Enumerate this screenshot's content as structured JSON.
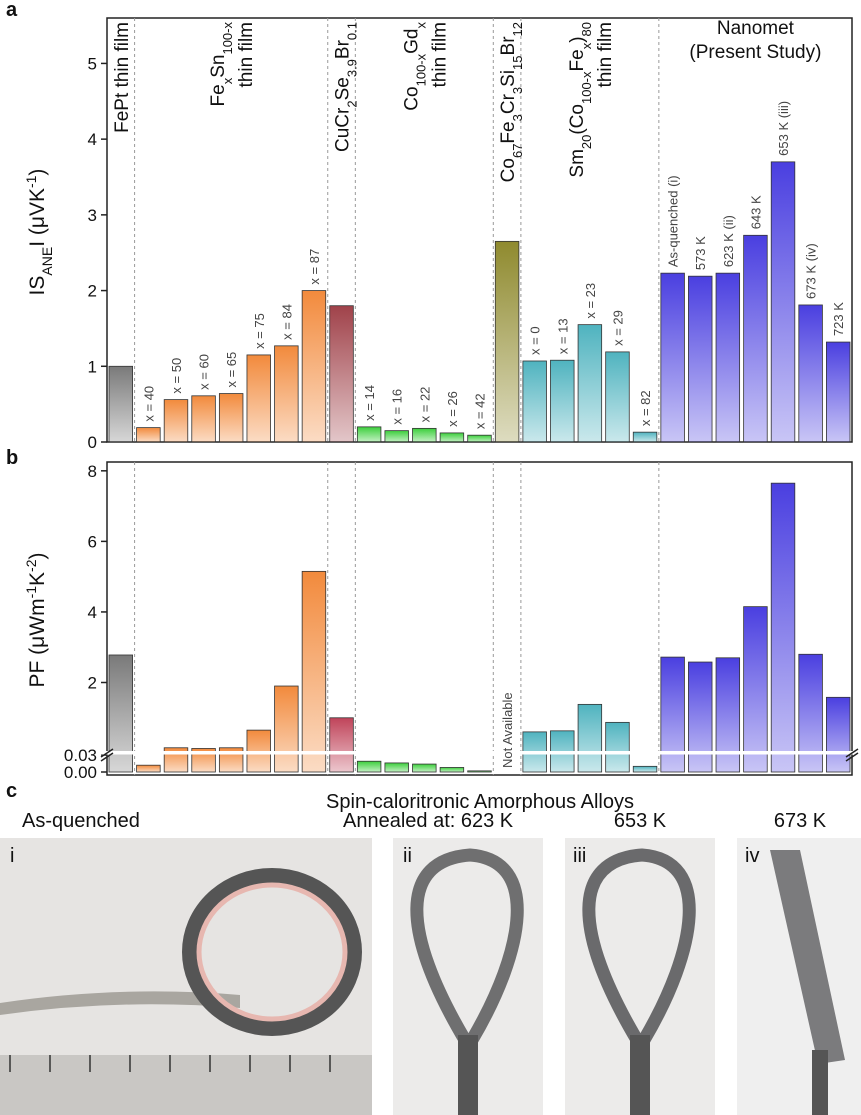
{
  "chart_data": [
    {
      "type": "bar",
      "panel": "a",
      "ylabel": [
        "IS",
        "ANE",
        "I (μVK",
        "-1",
        ")"
      ],
      "ylim": [
        0,
        5.6
      ],
      "yticks": [
        0,
        1,
        2,
        3,
        4,
        5
      ],
      "groups": [
        {
          "name": [
            [
              "FePt thin film"
            ]
          ],
          "color": "#7a7a7a",
          "labels": [
            null
          ],
          "values": [
            1.0
          ]
        },
        {
          "name": [
            [
              "Fe",
              "x",
              "Sn",
              "100-x"
            ],
            [
              "thin film"
            ]
          ],
          "color": "#f28a3c",
          "labels": [
            "x = 40",
            "x = 50",
            "x = 60",
            "x = 65",
            "x = 75",
            "x = 84",
            "x = 87"
          ],
          "values": [
            0.19,
            0.56,
            0.61,
            0.64,
            1.15,
            1.27,
            2.0
          ]
        },
        {
          "name": [
            [
              "CuCr",
              "2",
              "Se",
              "3.9",
              "Br",
              "0.1"
            ]
          ],
          "color": "#a0424a",
          "labels": [
            null
          ],
          "values": [
            1.8
          ]
        },
        {
          "name": [
            [
              "Co",
              "100-x",
              "Gd",
              "x"
            ],
            [
              "thin film"
            ]
          ],
          "color": "#3ccf3c",
          "labels": [
            "x = 14",
            "x = 16",
            "x = 22",
            "x = 26",
            "x = 42"
          ],
          "values": [
            0.2,
            0.15,
            0.18,
            0.12,
            0.09
          ]
        },
        {
          "name": [
            [
              "Co",
              "67",
              "Fe",
              "3",
              "Cr",
              "3",
              "Si",
              "15",
              "Br",
              "12"
            ]
          ],
          "color": "#8f8a2e",
          "labels": [
            null
          ],
          "values": [
            2.65
          ]
        },
        {
          "name": [
            [
              "Sm",
              "20",
              "(Co",
              "100-x",
              "Fe",
              "x",
              ")",
              "80"
            ],
            [
              "thin film"
            ]
          ],
          "color": "#4fb3bf",
          "labels": [
            "x = 0",
            "x = 13",
            "x = 23",
            "x = 29",
            "x = 82"
          ],
          "values": [
            1.07,
            1.08,
            1.55,
            1.19,
            0.13
          ]
        },
        {
          "name": [
            [
              "Nanomet"
            ],
            [
              "(Present Study)"
            ]
          ],
          "color": "#4a3fe0",
          "labels": [
            "As-quenched (i)",
            "573 K",
            "623 K (ii)",
            "643 K",
            "653 K (iii)",
            "673 K (iv)",
            "723 K"
          ],
          "values": [
            2.23,
            2.19,
            2.23,
            2.73,
            3.7,
            1.81,
            1.32
          ]
        }
      ]
    },
    {
      "type": "broken-bar",
      "panel": "b",
      "ylabel": [
        "PF (μWm",
        "-1",
        "K",
        "-2",
        ")"
      ],
      "xlabel": "Spin-caloritronic Amorphous Alloys",
      "segments": [
        {
          "ylim": [
            0,
            0.03
          ]
        },
        {
          "ylim": [
            0.03,
            8.25
          ]
        }
      ],
      "yticks": [
        {
          "value": 0,
          "label": "0.00"
        },
        {
          "value": 0.03,
          "label": "0.03"
        },
        2,
        4,
        6,
        8
      ],
      "annotation": "Not Available",
      "groups": [
        {
          "color": "#7a7a7a",
          "values": [
            2.78
          ]
        },
        {
          "color": "#f28a3c",
          "values": [
            0.012,
            0.15,
            0.13,
            0.15,
            0.65,
            1.9,
            5.15
          ]
        },
        {
          "color": "#c0445a",
          "values": [
            1.0
          ]
        },
        {
          "color": "#3ccf3c",
          "values": [
            0.019,
            0.016,
            0.014,
            0.008,
            0.002
          ]
        },
        {
          "color": "#8f8a2e",
          "values": [
            null
          ]
        },
        {
          "color": "#4fb3bf",
          "values": [
            0.6,
            0.63,
            1.38,
            0.87,
            0.01
          ]
        },
        {
          "color": "#4a3fe0",
          "values": [
            2.72,
            2.58,
            2.7,
            4.15,
            7.65,
            2.8,
            1.58
          ]
        }
      ]
    }
  ],
  "panel_c": {
    "letter": "c",
    "captions": [
      "As-quenched",
      "Annealed at: 623 K",
      "653 K",
      "673 K"
    ],
    "photo_labels": [
      "i",
      "ii",
      "iii",
      "iv"
    ]
  }
}
